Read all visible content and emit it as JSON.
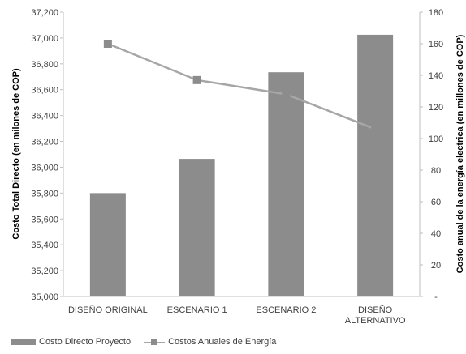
{
  "chart_data": {
    "type": "bar",
    "categories": [
      [
        "DISEÑO ORIGINAL"
      ],
      [
        "ESCENARIO 1"
      ],
      [
        "ESCENARIO 2"
      ],
      [
        "DISEÑO",
        "ALTERNATIVO"
      ]
    ],
    "series": [
      {
        "name": "Costo Directo Proyecto",
        "type": "bar",
        "axis": "left",
        "color": "#8c8c8c",
        "values": [
          35800,
          36065,
          36735,
          37025
        ]
      },
      {
        "name": "Costos Anuales de Energía",
        "type": "line",
        "axis": "right",
        "marker": "square",
        "color": "#a6a6a6",
        "marker_color": "#8c8c8c",
        "values": [
          160,
          137,
          128,
          106
        ]
      }
    ],
    "y_left": {
      "label": "Costo Total Directo (en milones de COP)",
      "ylim": [
        35000,
        37200
      ],
      "ticks": [
        "35,000",
        "35,200",
        "35,400",
        "35,600",
        "35,800",
        "36,000",
        "36,200",
        "36,400",
        "36,600",
        "36,800",
        "37,000",
        "37,200"
      ]
    },
    "y_right": {
      "label": "Costo anual de la energía electrica (en millones de COP)",
      "ylim": [
        0,
        180
      ],
      "ticks": [
        "-",
        "20",
        "40",
        "60",
        "80",
        "100",
        "120",
        "140",
        "160",
        "180"
      ]
    },
    "grid": false,
    "legend_position": "bottom-left"
  }
}
